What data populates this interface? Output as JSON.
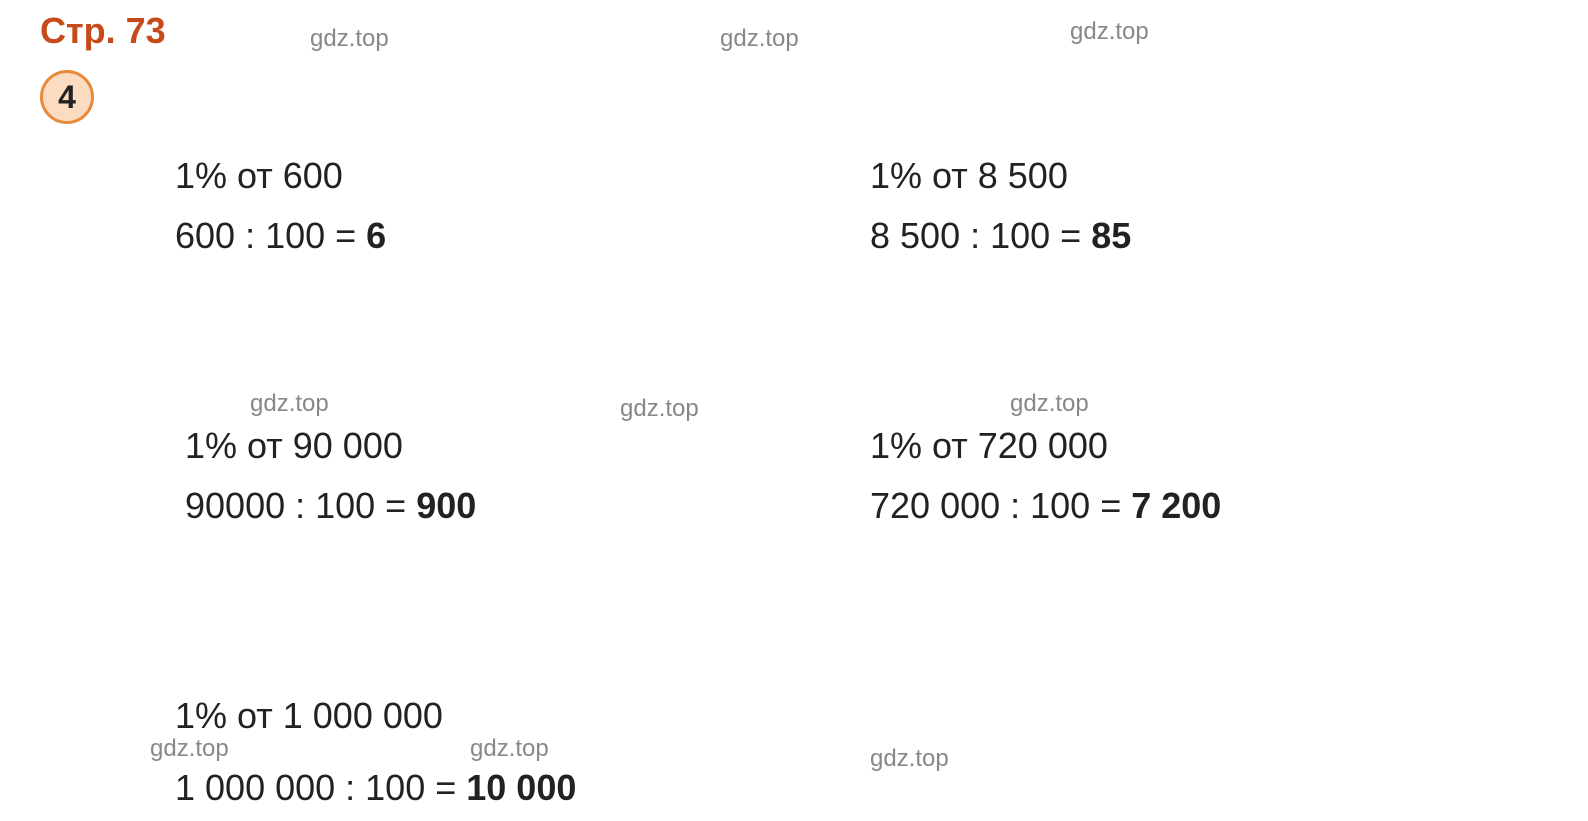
{
  "page_reference": "Стр. 73",
  "problem_number": "4",
  "watermark_text": "gdz.top",
  "colors": {
    "page_ref_color": "#c74b1a",
    "circle_fill": "#fcdcc1",
    "circle_border": "#e88a3c",
    "text_color": "#222222",
    "watermark_color": "#888888",
    "background": "#ffffff"
  },
  "typography": {
    "main_fontsize": 36,
    "watermark_fontsize": 24,
    "number_fontsize": 32,
    "font_family": "Arial"
  },
  "problems": [
    {
      "question": "1% от 600",
      "calculation": "600 : 100 = ",
      "result": "6"
    },
    {
      "question": "1% от 8 500",
      "calculation": " 8 500 : 100 = ",
      "result": "85"
    },
    {
      "question": "1% от 90 000",
      "calculation": "90000 : 100 = ",
      "result": "900"
    },
    {
      "question": "1% от 720 000",
      "calculation": "720 000 : 100 = ",
      "result": "7 200"
    },
    {
      "question": "1% от 1 000 000",
      "calculation": "1 000 000 : 100 = ",
      "result": "10 000"
    }
  ]
}
